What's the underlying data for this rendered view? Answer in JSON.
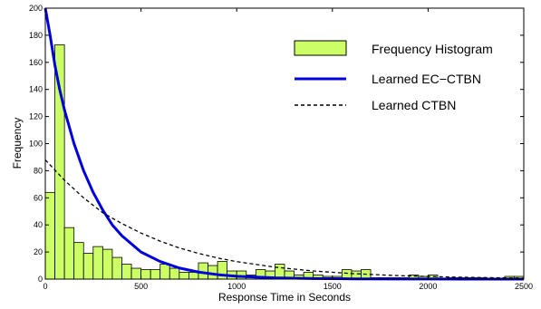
{
  "chart_data": {
    "type": "bar",
    "title": "",
    "xlabel": "Response Time in Seconds",
    "ylabel": "Frequency",
    "xlim": [
      0,
      2500
    ],
    "ylim": [
      0,
      200
    ],
    "grid": false,
    "legend_position": "top-right",
    "x_ticks": [
      "0",
      "500",
      "1000",
      "1500",
      "2000",
      "2500"
    ],
    "y_ticks": [
      "0",
      "20",
      "40",
      "60",
      "80",
      "100",
      "120",
      "140",
      "160",
      "180",
      "200"
    ],
    "histogram": {
      "name": "Frequency Histogram",
      "color": "#ccff66",
      "bin_width": 50,
      "bin_edges_start": 0,
      "values": [
        64,
        173,
        38,
        27,
        19,
        24,
        22,
        16,
        11,
        8,
        7,
        7,
        11,
        8,
        5,
        5,
        12,
        10,
        13,
        6,
        6,
        3,
        7,
        6,
        11,
        6,
        3,
        5,
        3,
        2,
        2,
        7,
        6,
        7,
        1,
        1,
        1,
        1,
        3,
        2,
        3,
        0,
        1,
        1,
        1,
        1,
        0,
        0,
        2,
        2
      ]
    },
    "series": [
      {
        "name": "Learned EC−CTBN",
        "color": "#0000dd",
        "style": "solid",
        "x": [
          0,
          25,
          50,
          75,
          100,
          150,
          200,
          250,
          300,
          350,
          400,
          450,
          500,
          600,
          700,
          800,
          900,
          1000,
          1200,
          1400,
          1600,
          1800,
          2000,
          2200,
          2500
        ],
        "y": [
          200,
          180,
          158,
          140,
          125,
          100,
          80,
          64,
          51,
          40,
          32,
          26,
          20,
          13,
          8.2,
          5.2,
          3.3,
          2.1,
          0.9,
          0.4,
          0.2,
          0.1,
          0.05,
          0.02,
          0.01
        ]
      },
      {
        "name": "Learned CTBN",
        "color": "#000000",
        "style": "dashed",
        "x": [
          0,
          100,
          200,
          300,
          400,
          500,
          600,
          700,
          800,
          900,
          1000,
          1200,
          1400,
          1600,
          1800,
          2000,
          2200,
          2500
        ],
        "y": [
          88,
          73,
          60,
          49,
          41,
          34,
          28,
          23,
          19,
          15.6,
          12.9,
          8.8,
          6.0,
          4.1,
          2.8,
          1.9,
          1.3,
          0.7
        ]
      }
    ]
  }
}
